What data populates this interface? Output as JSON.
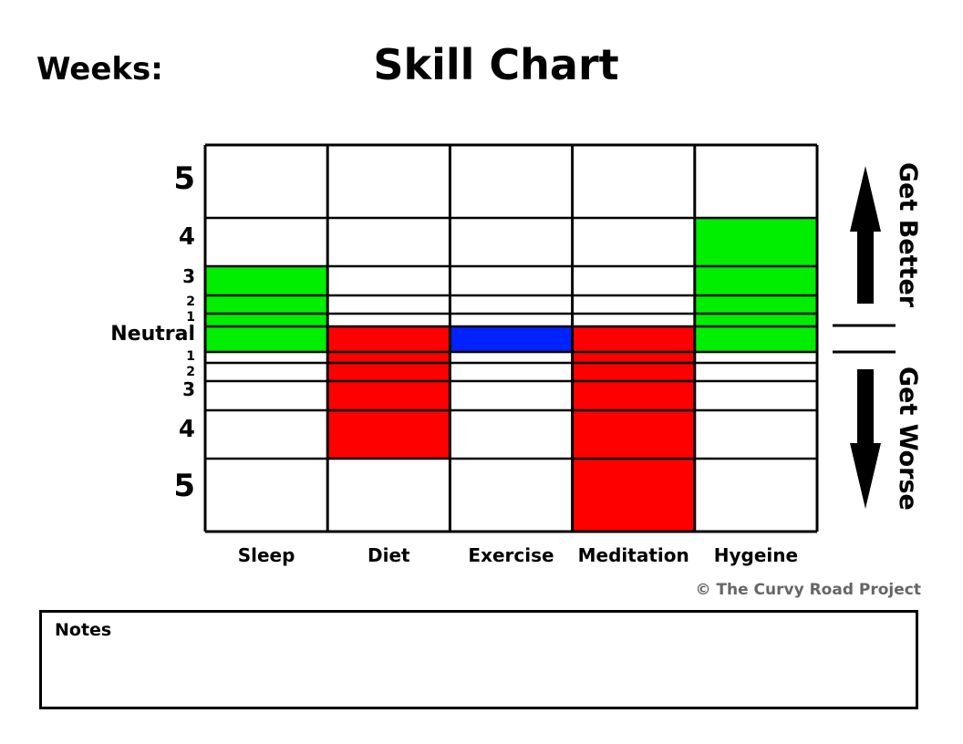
{
  "header": {
    "weeks_label": "Weeks:",
    "title": "Skill Chart"
  },
  "colors": {
    "better": "#00ee00",
    "worse": "#ff0000",
    "neutral": "#0022ff",
    "grid": "#000000"
  },
  "chart_data": {
    "type": "table",
    "title": "Skill Chart",
    "categories": [
      "Sleep",
      "Diet",
      "Exercise",
      "Meditation",
      "Hygeine"
    ],
    "rows": [
      "5",
      "4",
      "3",
      "2",
      "1",
      "Neutral",
      "1",
      "2",
      "3",
      "4",
      "5"
    ],
    "scale": [
      5,
      4,
      3,
      2,
      1,
      0,
      -1,
      -2,
      -3,
      -4,
      -5
    ],
    "values": [
      3,
      -4,
      0,
      -5,
      4
    ],
    "right_labels": {
      "up": "Get Better",
      "down": "Get Worse"
    }
  },
  "footer": {
    "copyright": "© The Curvy Road Project"
  },
  "notes": {
    "label": "Notes"
  }
}
